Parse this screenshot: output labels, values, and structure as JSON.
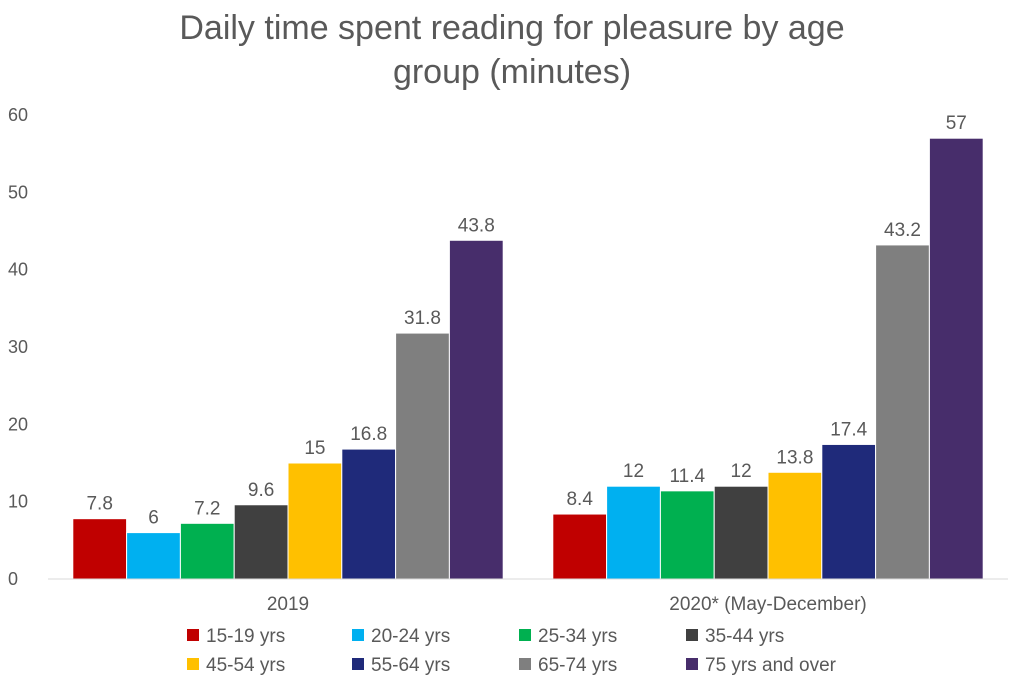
{
  "chart_data": {
    "type": "bar",
    "title": "Daily time spent reading for pleasure by age group (minutes)",
    "title_lines": [
      "Daily time spent reading for pleasure by age",
      "group (minutes)"
    ],
    "categories": [
      "2019",
      "2020* (May-December)"
    ],
    "series": [
      {
        "name": "15-19 yrs",
        "color": "#C00000",
        "values": [
          7.8,
          8.4
        ]
      },
      {
        "name": "20-24 yrs",
        "color": "#00B0F0",
        "values": [
          6,
          12
        ]
      },
      {
        "name": "25-34 yrs",
        "color": "#00B050",
        "values": [
          7.2,
          11.4
        ]
      },
      {
        "name": "35-44 yrs",
        "color": "#404040",
        "values": [
          9.6,
          12
        ]
      },
      {
        "name": "45-54 yrs",
        "color": "#FFC000",
        "values": [
          15,
          13.8
        ]
      },
      {
        "name": "55-64 yrs",
        "color": "#1F2A7A",
        "values": [
          16.8,
          17.4
        ]
      },
      {
        "name": "65-74 yrs",
        "color": "#7F7F7F",
        "values": [
          31.8,
          43.2
        ]
      },
      {
        "name": "75 yrs and over",
        "color": "#472D6B",
        "values": [
          43.8,
          57
        ]
      }
    ],
    "ylim": [
      0,
      60
    ],
    "yticks": [
      0,
      10,
      20,
      30,
      40,
      50,
      60
    ],
    "xlabel": "",
    "ylabel": "",
    "grid": false,
    "legend_position": "bottom",
    "data_labels": true
  }
}
